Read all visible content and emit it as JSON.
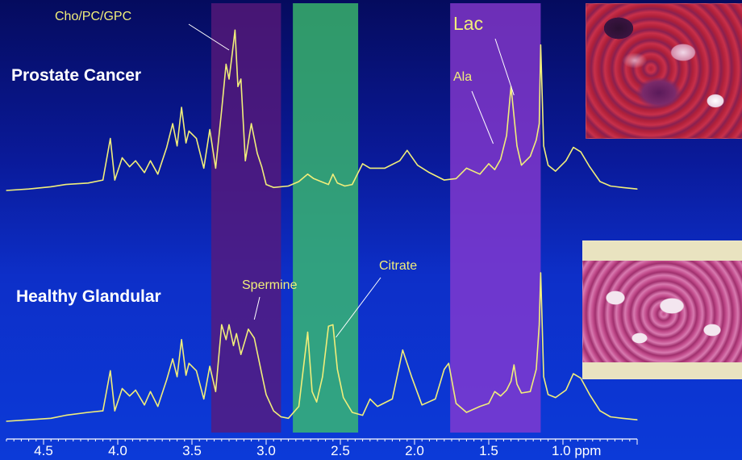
{
  "chart_data": {
    "type": "line",
    "title": "",
    "xlabel": "ppm",
    "ylabel": "",
    "x_axis": {
      "ticks": [
        "4.5",
        "4.0",
        "3.5",
        "3.0",
        "2.5",
        "2.0",
        "1.5",
        "1.0 ppm"
      ],
      "tick_values": [
        4.5,
        4.0,
        3.5,
        3.0,
        2.5,
        2.0,
        1.5,
        1.0
      ],
      "range": [
        4.75,
        0.5
      ],
      "reversed": true
    },
    "grid": false,
    "highlight_bands": [
      {
        "from": 3.37,
        "to": 2.9,
        "color": "#5a1a7a"
      },
      {
        "from": 2.82,
        "to": 2.38,
        "color": "#3cc16c"
      },
      {
        "from": 1.76,
        "to": 1.15,
        "color": "#8a3ad0"
      }
    ],
    "series": [
      {
        "name": "Prostate Cancer",
        "color": "#f1ee7a",
        "baseline": 0,
        "x": [
          4.75,
          4.6,
          4.45,
          4.35,
          4.2,
          4.1,
          4.05,
          4.02,
          3.97,
          3.92,
          3.88,
          3.82,
          3.78,
          3.73,
          3.67,
          3.63,
          3.6,
          3.57,
          3.54,
          3.52,
          3.47,
          3.42,
          3.38,
          3.34,
          3.3,
          3.27,
          3.25,
          3.23,
          3.21,
          3.19,
          3.17,
          3.14,
          3.1,
          3.06,
          3.03,
          3.0,
          2.95,
          2.85,
          2.78,
          2.72,
          2.68,
          2.63,
          2.58,
          2.55,
          2.52,
          2.47,
          2.42,
          2.35,
          2.3,
          2.2,
          2.1,
          2.05,
          1.98,
          1.9,
          1.8,
          1.72,
          1.65,
          1.56,
          1.5,
          1.46,
          1.42,
          1.38,
          1.35,
          1.33,
          1.31,
          1.28,
          1.22,
          1.18,
          1.16,
          1.15,
          1.13,
          1.1,
          1.05,
          0.98,
          0.93,
          0.88,
          0.82,
          0.75,
          0.68,
          0.6,
          0.5
        ],
        "y": [
          0,
          2,
          5,
          8,
          10,
          14,
          70,
          14,
          44,
          32,
          40,
          24,
          40,
          22,
          58,
          90,
          60,
          112,
          64,
          80,
          70,
          30,
          82,
          30,
          108,
          170,
          150,
          182,
          216,
          140,
          150,
          40,
          90,
          50,
          32,
          8,
          4,
          6,
          12,
          22,
          16,
          12,
          8,
          22,
          10,
          6,
          8,
          36,
          30,
          30,
          40,
          54,
          34,
          24,
          14,
          16,
          30,
          22,
          36,
          28,
          42,
          74,
          140,
          100,
          60,
          34,
          46,
          68,
          90,
          196,
          60,
          34,
          26,
          40,
          58,
          52,
          32,
          12,
          6,
          4,
          2
        ]
      },
      {
        "name": "Healthy Glandular",
        "color": "#f1ee7a",
        "baseline": 1,
        "x": [
          4.75,
          4.6,
          4.45,
          4.35,
          4.2,
          4.1,
          4.05,
          4.02,
          3.97,
          3.92,
          3.88,
          3.82,
          3.78,
          3.73,
          3.67,
          3.63,
          3.6,
          3.57,
          3.54,
          3.52,
          3.47,
          3.42,
          3.38,
          3.34,
          3.3,
          3.27,
          3.25,
          3.22,
          3.2,
          3.17,
          3.14,
          3.12,
          3.08,
          3.03,
          3.0,
          2.95,
          2.9,
          2.85,
          2.78,
          2.72,
          2.69,
          2.66,
          2.62,
          2.58,
          2.55,
          2.52,
          2.48,
          2.42,
          2.35,
          2.3,
          2.25,
          2.15,
          2.08,
          2.02,
          1.95,
          1.86,
          1.8,
          1.77,
          1.72,
          1.65,
          1.56,
          1.5,
          1.46,
          1.42,
          1.38,
          1.35,
          1.33,
          1.31,
          1.28,
          1.22,
          1.18,
          1.16,
          1.15,
          1.13,
          1.1,
          1.05,
          0.98,
          0.93,
          0.88,
          0.82,
          0.75,
          0.68,
          0.6,
          0.5
        ],
        "y": [
          0,
          2,
          4,
          8,
          12,
          14,
          68,
          14,
          44,
          34,
          42,
          22,
          40,
          20,
          56,
          84,
          60,
          110,
          62,
          78,
          68,
          30,
          74,
          40,
          130,
          110,
          130,
          102,
          118,
          90,
          110,
          124,
          112,
          64,
          36,
          14,
          6,
          4,
          20,
          120,
          40,
          26,
          60,
          128,
          130,
          70,
          32,
          12,
          8,
          30,
          20,
          30,
          96,
          60,
          22,
          30,
          70,
          78,
          24,
          12,
          20,
          24,
          40,
          34,
          42,
          54,
          76,
          50,
          38,
          40,
          70,
          130,
          200,
          60,
          36,
          32,
          42,
          64,
          58,
          36,
          14,
          6,
          4,
          2
        ]
      }
    ],
    "annotations": [
      {
        "text": "Cho/PC/GPC",
        "style": "yellow",
        "x": 3.26
      },
      {
        "text": "Lac",
        "style": "yellow-lg",
        "x": 1.36
      },
      {
        "text": "Ala",
        "style": "yellow",
        "x": 1.47
      },
      {
        "text": "Spermine",
        "style": "yellow",
        "x": 3.1
      },
      {
        "text": "Citrate",
        "style": "yellow",
        "x": 2.54
      }
    ],
    "panel_labels": [
      "Prostate Cancer",
      "Healthy Glandular"
    ]
  }
}
